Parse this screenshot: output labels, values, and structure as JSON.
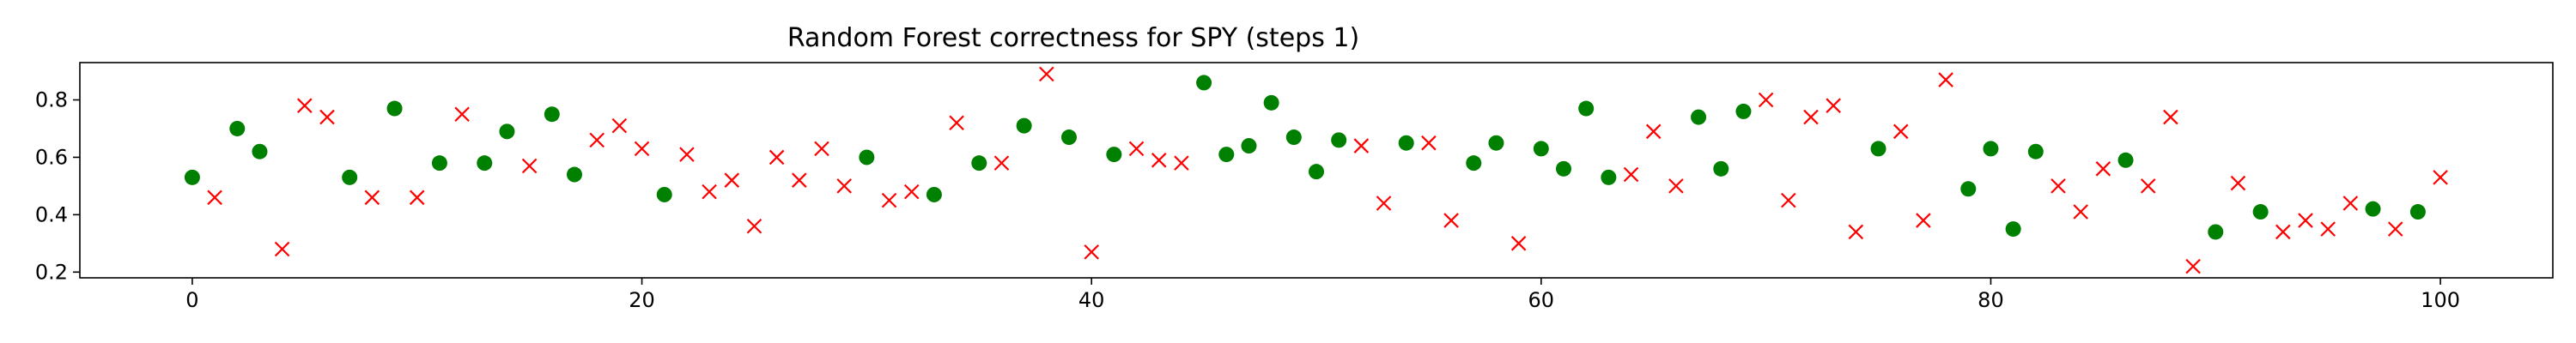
{
  "chart_data": {
    "type": "scatter",
    "title": "Random Forest correctness for SPY (steps 1)",
    "xlabel": "",
    "ylabel": "",
    "xlim": [
      -5,
      105
    ],
    "ylim": [
      0.18,
      0.93
    ],
    "xticks": [
      0,
      20,
      40,
      60,
      80,
      100
    ],
    "xtick_labels": [
      "0",
      "20",
      "40",
      "60",
      "80",
      "100"
    ],
    "yticks": [
      0.2,
      0.4,
      0.6,
      0.8
    ],
    "ytick_labels": [
      "0.2",
      "0.4",
      "0.6",
      "0.8"
    ],
    "grid": false,
    "legend": false,
    "colors": {
      "correct": "#008000",
      "incorrect": "#ff0000"
    },
    "series": [
      {
        "marker": "circle",
        "color": "#008000",
        "points": [
          [
            0,
            0.53
          ],
          [
            2,
            0.7
          ],
          [
            3,
            0.62
          ],
          [
            7,
            0.53
          ],
          [
            9,
            0.77
          ],
          [
            11,
            0.58
          ],
          [
            13,
            0.58
          ],
          [
            14,
            0.69
          ],
          [
            16,
            0.75
          ],
          [
            17,
            0.54
          ],
          [
            21,
            0.47
          ],
          [
            30,
            0.6
          ],
          [
            33,
            0.47
          ],
          [
            35,
            0.58
          ],
          [
            37,
            0.71
          ],
          [
            39,
            0.67
          ],
          [
            41,
            0.61
          ],
          [
            45,
            0.86
          ],
          [
            46,
            0.61
          ],
          [
            47,
            0.64
          ],
          [
            48,
            0.79
          ],
          [
            49,
            0.67
          ],
          [
            50,
            0.55
          ],
          [
            51,
            0.66
          ],
          [
            54,
            0.65
          ],
          [
            57,
            0.58
          ],
          [
            58,
            0.65
          ],
          [
            60,
            0.63
          ],
          [
            61,
            0.56
          ],
          [
            62,
            0.77
          ],
          [
            63,
            0.53
          ],
          [
            67,
            0.74
          ],
          [
            68,
            0.56
          ],
          [
            69,
            0.76
          ],
          [
            75,
            0.63
          ],
          [
            79,
            0.49
          ],
          [
            80,
            0.63
          ],
          [
            81,
            0.35
          ],
          [
            82,
            0.62
          ],
          [
            86,
            0.59
          ],
          [
            90,
            0.34
          ],
          [
            92,
            0.41
          ],
          [
            97,
            0.42
          ],
          [
            99,
            0.41
          ]
        ]
      },
      {
        "marker": "x",
        "color": "#ff0000",
        "points": [
          [
            1,
            0.46
          ],
          [
            4,
            0.28
          ],
          [
            5,
            0.78
          ],
          [
            6,
            0.74
          ],
          [
            8,
            0.46
          ],
          [
            10,
            0.46
          ],
          [
            12,
            0.75
          ],
          [
            15,
            0.57
          ],
          [
            18,
            0.66
          ],
          [
            19,
            0.71
          ],
          [
            20,
            0.63
          ],
          [
            22,
            0.61
          ],
          [
            23,
            0.48
          ],
          [
            24,
            0.52
          ],
          [
            25,
            0.36
          ],
          [
            26,
            0.6
          ],
          [
            27,
            0.52
          ],
          [
            28,
            0.63
          ],
          [
            29,
            0.5
          ],
          [
            31,
            0.45
          ],
          [
            32,
            0.48
          ],
          [
            34,
            0.72
          ],
          [
            36,
            0.58
          ],
          [
            38,
            0.89
          ],
          [
            40,
            0.27
          ],
          [
            42,
            0.63
          ],
          [
            43,
            0.59
          ],
          [
            44,
            0.58
          ],
          [
            52,
            0.64
          ],
          [
            53,
            0.44
          ],
          [
            55,
            0.65
          ],
          [
            56,
            0.38
          ],
          [
            59,
            0.3
          ],
          [
            64,
            0.54
          ],
          [
            65,
            0.69
          ],
          [
            66,
            0.5
          ],
          [
            70,
            0.8
          ],
          [
            71,
            0.45
          ],
          [
            72,
            0.74
          ],
          [
            73,
            0.78
          ],
          [
            74,
            0.34
          ],
          [
            76,
            0.69
          ],
          [
            77,
            0.38
          ],
          [
            78,
            0.87
          ],
          [
            83,
            0.5
          ],
          [
            84,
            0.41
          ],
          [
            85,
            0.56
          ],
          [
            87,
            0.5
          ],
          [
            88,
            0.74
          ],
          [
            89,
            0.22
          ],
          [
            91,
            0.51
          ],
          [
            93,
            0.34
          ],
          [
            94,
            0.38
          ],
          [
            95,
            0.35
          ],
          [
            96,
            0.44
          ],
          [
            98,
            0.35
          ],
          [
            100,
            0.53
          ]
        ]
      }
    ]
  }
}
